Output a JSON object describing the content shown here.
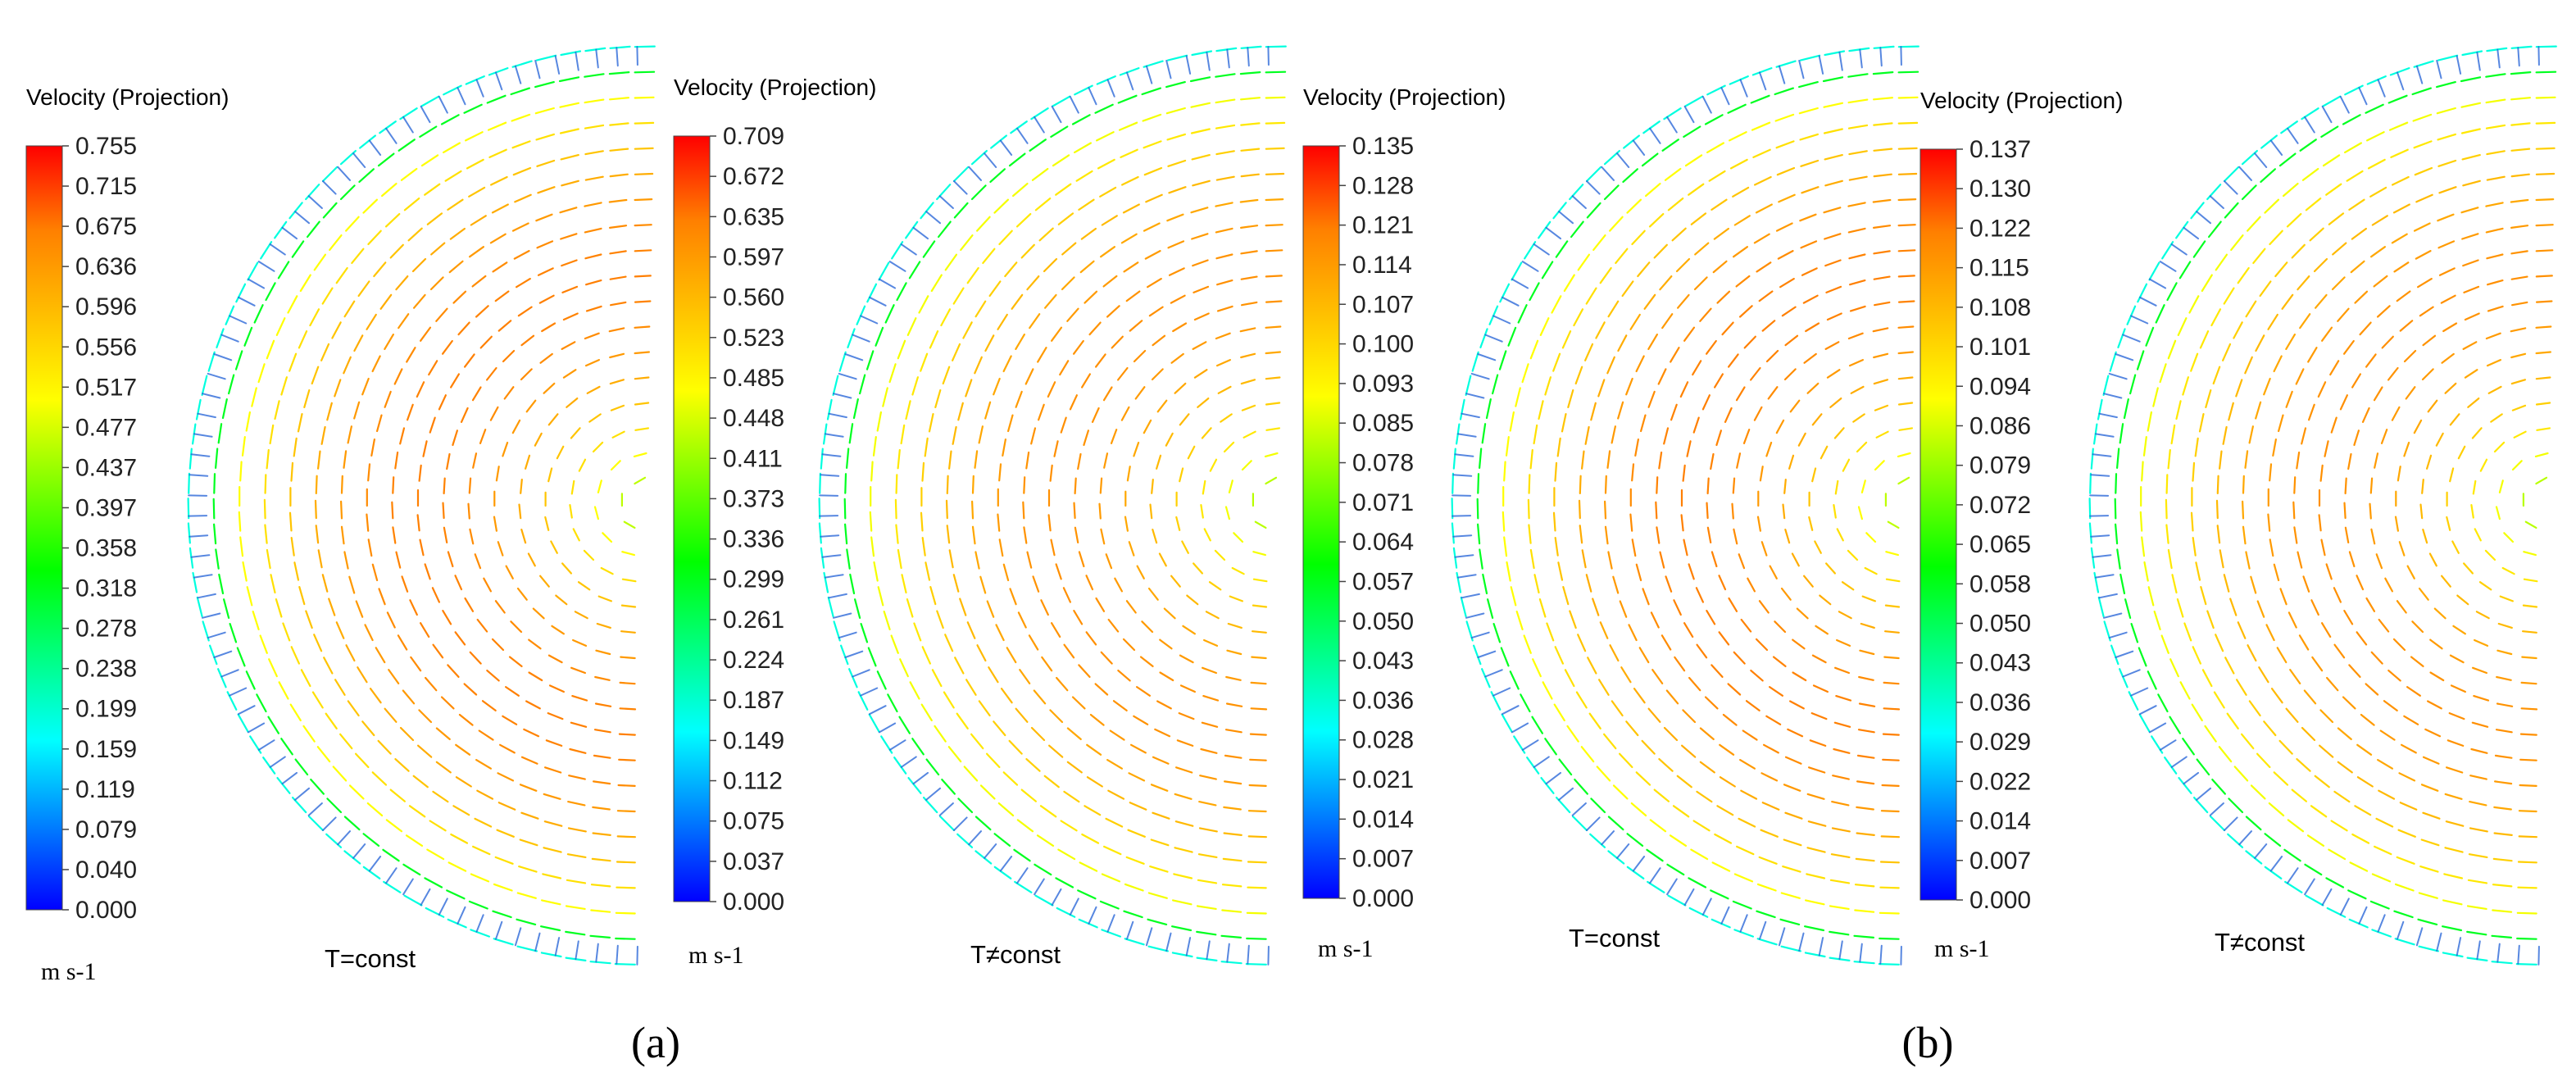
{
  "panel_labels": {
    "a": "(a)",
    "b": "(b)"
  },
  "colormap": [
    "#0000ff",
    "#0080ff",
    "#00ffff",
    "#00ff80",
    "#00ff00",
    "#80ff00",
    "#ffff00",
    "#ffbf00",
    "#ff8000",
    "#ff0000"
  ],
  "arrow_color_low": "#1f5fd6",
  "chart_data": [
    {
      "type": "vector-field",
      "panel": "a",
      "title": "Velocity (Projection)",
      "unit": "m s-1",
      "case_label": "T=const",
      "range": [
        0.0,
        0.755
      ],
      "ticks": [
        "0.755",
        "0.715",
        "0.675",
        "0.636",
        "0.596",
        "0.556",
        "0.517",
        "0.477",
        "0.437",
        "0.397",
        "0.358",
        "0.318",
        "0.278",
        "0.238",
        "0.199",
        "0.159",
        "0.119",
        "0.079",
        "0.040",
        "0.000"
      ]
    },
    {
      "type": "vector-field",
      "panel": "a",
      "title": "Velocity (Projection)",
      "unit": "m s-1",
      "case_label": "T≠const",
      "range": [
        0.0,
        0.709
      ],
      "ticks": [
        "0.709",
        "0.672",
        "0.635",
        "0.597",
        "0.560",
        "0.523",
        "0.485",
        "0.448",
        "0.411",
        "0.373",
        "0.336",
        "0.299",
        "0.261",
        "0.224",
        "0.187",
        "0.149",
        "0.112",
        "0.075",
        "0.037",
        "0.000"
      ]
    },
    {
      "type": "vector-field",
      "panel": "b",
      "title": "Velocity (Projection)",
      "unit": "m s-1",
      "case_label": "T=const",
      "range": [
        0.0,
        0.135
      ],
      "ticks": [
        "0.135",
        "0.128",
        "0.121",
        "0.114",
        "0.107",
        "0.100",
        "0.093",
        "0.085",
        "0.078",
        "0.071",
        "0.064",
        "0.057",
        "0.050",
        "0.043",
        "0.036",
        "0.028",
        "0.021",
        "0.014",
        "0.007",
        "0.000"
      ]
    },
    {
      "type": "vector-field",
      "panel": "b",
      "title": "Velocity (Projection)",
      "unit": "m s-1",
      "case_label": "T≠const",
      "range": [
        0.0,
        0.137
      ],
      "ticks": [
        "0.137",
        "0.130",
        "0.122",
        "0.115",
        "0.108",
        "0.101",
        "0.094",
        "0.086",
        "0.079",
        "0.072",
        "0.065",
        "0.058",
        "0.050",
        "0.043",
        "0.036",
        "0.029",
        "0.022",
        "0.014",
        "0.007",
        "0.000"
      ]
    }
  ]
}
